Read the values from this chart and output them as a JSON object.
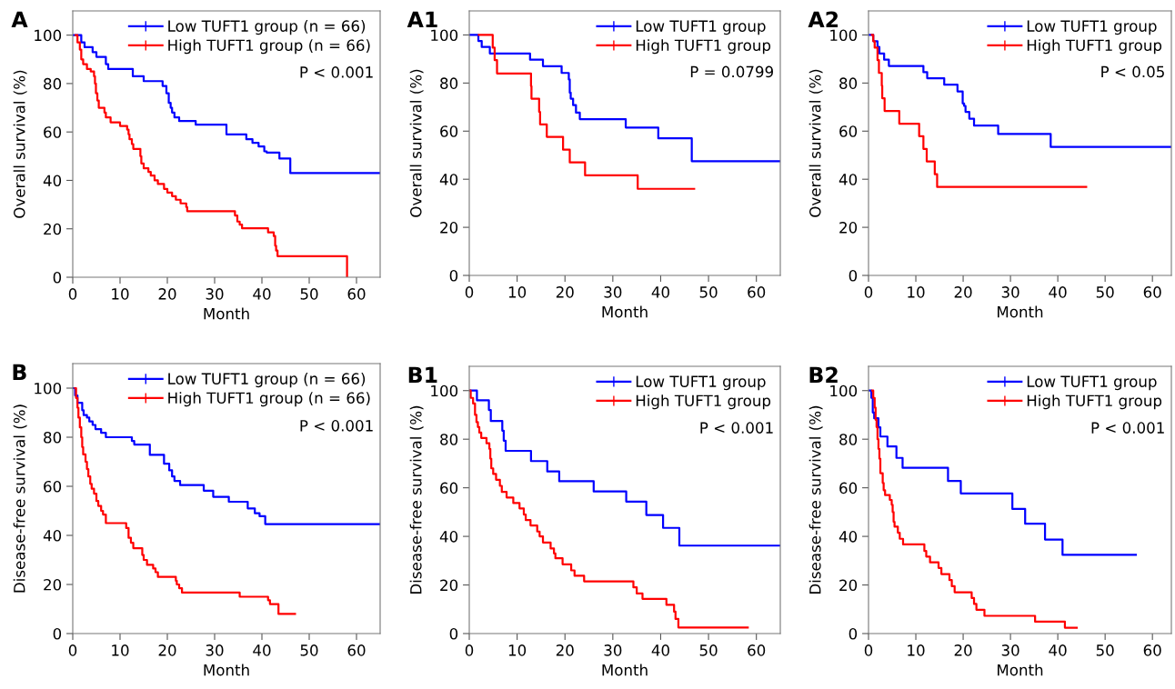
{
  "chart_data": [
    {
      "type": "step",
      "title": "A",
      "xlabel": "Month",
      "ylabel": "Overall survival (%)",
      "xlim": [
        0,
        65
      ],
      "ylim": [
        0,
        110
      ],
      "xticks": [
        0,
        10,
        20,
        30,
        40,
        50,
        60
      ],
      "yticks": [
        0,
        20,
        40,
        60,
        80,
        100
      ],
      "legend": "top right",
      "grid": false,
      "annotations": [
        "P < 0.001"
      ],
      "series": [
        {
          "name": "Low TUFT1 group (n = 66)",
          "color": "#0000ff",
          "x": [
            0,
            1.8,
            2.5,
            4.2,
            5,
            7,
            7.5,
            12.7,
            15,
            19,
            19.8,
            20.3,
            20.7,
            21,
            21.5,
            22.5,
            26,
            32.5,
            36.7,
            38,
            39.3,
            40.5,
            41,
            43.7,
            46,
            65
          ],
          "values": [
            100,
            97,
            95,
            93,
            91,
            88,
            86,
            83,
            81,
            79,
            76,
            72,
            70,
            68,
            66,
            64.5,
            63,
            59,
            57,
            55.5,
            54,
            52,
            51.5,
            49,
            43,
            43
          ]
        },
        {
          "name": "High TUFT1 group (n = 66)",
          "color": "#ff0000",
          "x": [
            0.6,
            1,
            1.5,
            1.8,
            2.2,
            3,
            3.8,
            4.5,
            4.7,
            4.9,
            5.2,
            5.5,
            6.7,
            7,
            8,
            10,
            11.5,
            11.8,
            12,
            12.5,
            12.8,
            14.3,
            14.5,
            15,
            16,
            16.5,
            17.3,
            18,
            19.3,
            20,
            21,
            21.8,
            22.8,
            24,
            24.2,
            34.3,
            34.8,
            35.3,
            35.8,
            41.3,
            42.5,
            42.8,
            43,
            43.3,
            58
          ],
          "values": [
            100,
            97,
            94,
            90,
            88,
            86,
            85,
            83,
            80,
            76,
            73,
            70,
            68,
            66,
            64,
            62.5,
            61,
            59,
            57,
            55,
            53,
            50,
            47,
            45,
            43.5,
            42,
            40,
            38.5,
            36.5,
            35,
            33.5,
            32,
            30.5,
            29,
            27.3,
            25.5,
            23,
            21.7,
            20.2,
            18.5,
            17,
            13,
            11,
            8.7,
            0
          ]
        }
      ]
    },
    {
      "type": "step",
      "title": "A1",
      "xlabel": "Month",
      "ylabel": "Overall survival (%)",
      "xlim": [
        0,
        65
      ],
      "ylim": [
        0,
        110
      ],
      "xticks": [
        0,
        10,
        20,
        30,
        40,
        50,
        60
      ],
      "yticks": [
        0,
        20,
        40,
        60,
        80,
        100
      ],
      "legend": "top right",
      "grid": false,
      "annotations": [
        "P = 0.0799"
      ],
      "series": [
        {
          "name": "Low TUFT1 group",
          "color": "#0000ff",
          "x": [
            0,
            1.9,
            2.6,
            4.3,
            12.7,
            15.4,
            19.3,
            20.8,
            21,
            21.2,
            21.7,
            22.3,
            23.1,
            32.7,
            39.5,
            46.5,
            65
          ],
          "values": [
            100,
            97.5,
            95,
            92.3,
            89.7,
            87,
            84.2,
            81.5,
            76,
            73.5,
            70.8,
            67.7,
            65,
            61.5,
            57,
            47.5,
            47.5
          ]
        },
        {
          "name": "High TUFT1 group",
          "color": "#ff0000",
          "x": [
            2,
            4.9,
            5.3,
            5.8,
            12.9,
            13,
            14.6,
            14.8,
            16.2,
            19.6,
            21,
            24.2,
            35.2,
            47
          ],
          "values": [
            100,
            94.7,
            89.5,
            84,
            78.7,
            73.5,
            68,
            62.8,
            57.6,
            52.3,
            47,
            41.6,
            36,
            36
          ]
        }
      ]
    },
    {
      "type": "step",
      "title": "A2",
      "xlabel": "Month",
      "ylabel": "Overall survival (%)",
      "xlim": [
        0,
        64
      ],
      "ylim": [
        0,
        110
      ],
      "xticks": [
        0,
        10,
        20,
        30,
        40,
        50,
        60
      ],
      "yticks": [
        0,
        20,
        40,
        60,
        80,
        100
      ],
      "legend": "top right",
      "grid": false,
      "annotations": [
        "P < 0.05"
      ],
      "series": [
        {
          "name": "Low TUFT1 group",
          "color": "#0000ff",
          "x": [
            0,
            1,
            1.9,
            2.3,
            3.3,
            4.3,
            11.6,
            12.4,
            16,
            18.8,
            19.9,
            20.2,
            20.5,
            21.3,
            22.3,
            27.4,
            38.5,
            64
          ],
          "values": [
            100,
            97.4,
            95,
            92.3,
            89.7,
            87.1,
            84.5,
            82,
            79.3,
            76.5,
            71.5,
            70.5,
            68,
            65.2,
            62.3,
            58.8,
            53.4,
            53.4
          ]
        },
        {
          "name": "High TUFT1 group",
          "color": "#ff0000",
          "x": [
            0.7,
            1,
            1.3,
            1.9,
            2.2,
            2.8,
            2.9,
            3.4,
            6.5,
            10.7,
            11.6,
            12.3,
            14,
            14.5,
            46
          ],
          "values": [
            100,
            97.4,
            94.7,
            89.5,
            84.2,
            78.9,
            73.7,
            68.4,
            63.1,
            57.9,
            52.6,
            47.4,
            42.1,
            36.8,
            36.8
          ]
        }
      ]
    },
    {
      "type": "step",
      "title": "B",
      "xlabel": "Month",
      "ylabel": "Disease-free survival (%)",
      "xlim": [
        0,
        65
      ],
      "ylim": [
        0,
        110
      ],
      "xticks": [
        0,
        10,
        20,
        30,
        40,
        50,
        60
      ],
      "yticks": [
        0,
        20,
        40,
        60,
        80,
        100
      ],
      "legend": "top right",
      "grid": false,
      "annotations": [
        "P < 0.001"
      ],
      "series": [
        {
          "name": "Low TUFT1 group (n = 66)",
          "color": "#0000ff",
          "x": [
            0,
            0.5,
            1,
            2,
            2.3,
            3,
            3.5,
            4.2,
            4.8,
            6,
            7,
            12.5,
            13,
            16.3,
            19.3,
            20.4,
            21,
            21.5,
            22.7,
            27.7,
            29.7,
            33,
            37,
            38.5,
            39.5,
            40.7,
            65
          ],
          "values": [
            100,
            97,
            94,
            91,
            89,
            88,
            86.4,
            85,
            83.3,
            81.8,
            80,
            78.5,
            77,
            72.8,
            69.2,
            66.5,
            64,
            62.2,
            60.5,
            58.2,
            55.7,
            53.7,
            51,
            49,
            47.8,
            44.6,
            44.6
          ]
        },
        {
          "name": "High TUFT1 group (n = 66)",
          "color": "#ff0000",
          "x": [
            0.5,
            0.7,
            1,
            1.2,
            1.5,
            1.8,
            2,
            2.2,
            2.7,
            3,
            3.3,
            3.7,
            4,
            4.5,
            5,
            5.4,
            6,
            6.4,
            7,
            11.3,
            11.8,
            12.3,
            12.8,
            14.7,
            15,
            15.7,
            17,
            17.5,
            18,
            21.8,
            22,
            22.5,
            23.1,
            35.3,
            41.3,
            41.7,
            43.5,
            47
          ],
          "values": [
            100,
            96,
            92,
            88,
            84,
            80,
            76,
            73,
            70,
            67,
            64,
            61,
            59,
            57,
            54,
            52,
            50,
            48.5,
            45,
            43,
            39,
            37,
            34.8,
            32,
            30,
            28,
            26.5,
            25,
            23.1,
            21.5,
            20,
            18.5,
            16.7,
            15,
            13.6,
            12,
            8,
            8
          ]
        }
      ]
    },
    {
      "type": "step",
      "title": "B1",
      "xlabel": "Month",
      "ylabel": "Disease-free survival (%)",
      "xlim": [
        0,
        65
      ],
      "ylim": [
        0,
        110
      ],
      "xticks": [
        0,
        10,
        20,
        30,
        40,
        50,
        60
      ],
      "yticks": [
        0,
        20,
        40,
        60,
        80,
        100
      ],
      "legend": "top right",
      "grid": false,
      "annotations": [
        "P < 0.001"
      ],
      "series": [
        {
          "name": "Low TUFT1 group",
          "color": "#0000ff",
          "x": [
            0,
            1.6,
            4.1,
            4.5,
            6.9,
            7.2,
            7.6,
            12.9,
            16.3,
            18.8,
            26,
            32.8,
            37,
            40.5,
            43.9,
            65
          ],
          "values": [
            100,
            96,
            92,
            87.5,
            83.5,
            79.4,
            75.2,
            71,
            66.7,
            62.7,
            58.5,
            54.3,
            48.8,
            43.5,
            36.2,
            36.2
          ]
        },
        {
          "name": "High TUFT1 group",
          "color": "#ff0000",
          "x": [
            0,
            0.3,
            0.8,
            1.2,
            1.5,
            1.8,
            2.1,
            2.5,
            3.6,
            4.2,
            4.4,
            4.6,
            5,
            5.6,
            6.4,
            6.8,
            7.8,
            9.2,
            10.5,
            11.4,
            11.8,
            12.8,
            14.2,
            14.7,
            15.4,
            17,
            17.7,
            18,
            19.5,
            21.3,
            22,
            24,
            34.3,
            35,
            36.2,
            41.2,
            42.8,
            43.1,
            43.7,
            58.2
          ],
          "values": [
            100,
            97,
            94.7,
            90,
            87,
            85,
            82.7,
            80.5,
            78.3,
            76,
            72,
            68,
            65.7,
            63.3,
            60.8,
            58.3,
            56,
            53.7,
            51.5,
            49,
            46.7,
            44.5,
            42,
            40,
            37.5,
            35,
            33,
            31,
            28.5,
            26,
            23.8,
            21.5,
            19,
            16.5,
            14.3,
            11.8,
            9,
            6,
            2.5,
            2.5
          ]
        }
      ]
    },
    {
      "type": "step",
      "title": "B2",
      "xlabel": "Month",
      "ylabel": "Disease-free survival (%)",
      "xlim": [
        0,
        64
      ],
      "ylim": [
        0,
        110
      ],
      "xticks": [
        0,
        10,
        20,
        30,
        40,
        50,
        60
      ],
      "yticks": [
        0,
        20,
        40,
        60,
        80,
        100
      ],
      "legend": "top right",
      "grid": false,
      "annotations": [
        "P < 0.001"
      ],
      "series": [
        {
          "name": "Low TUFT1 group",
          "color": "#0000ff",
          "x": [
            0,
            0.6,
            0.9,
            1.2,
            2.1,
            2.5,
            4,
            5.9,
            7.2,
            16.8,
            19.5,
            30.4,
            33.1,
            37.3,
            41,
            56.5
          ],
          "values": [
            100,
            97,
            91,
            88.6,
            84.9,
            81.1,
            77,
            72.3,
            68.2,
            62.8,
            57.7,
            51.3,
            45.2,
            38.7,
            32.4,
            32.4
          ]
        },
        {
          "name": "High TUFT1 group",
          "color": "#ff0000",
          "x": [
            0.8,
            1,
            1.3,
            1.5,
            1.7,
            1.9,
            2.1,
            2.3,
            2.5,
            3,
            3.2,
            3.5,
            4.5,
            4.9,
            5.1,
            5.3,
            5.5,
            6.2,
            6.6,
            7.3,
            11.8,
            12.2,
            13,
            14.8,
            15.4,
            17.1,
            17.6,
            18.2,
            21.8,
            22.3,
            22.8,
            24.5,
            35.2,
            41.5,
            44
          ],
          "values": [
            100,
            97,
            93,
            88,
            85,
            80,
            76,
            72,
            66,
            62,
            59,
            57,
            55,
            53,
            50,
            46,
            44,
            41.5,
            39,
            36.7,
            34,
            31.7,
            29.3,
            27,
            24.5,
            22,
            19.5,
            17,
            14.6,
            12.2,
            9.8,
            7.3,
            4.9,
            2.4,
            2.4
          ]
        }
      ]
    }
  ]
}
